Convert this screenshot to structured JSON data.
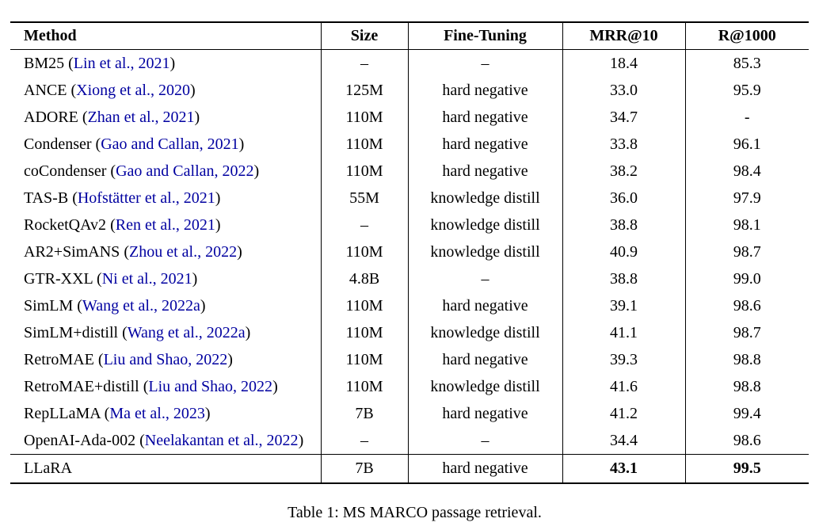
{
  "colors": {
    "citation_link": "#0000a0",
    "text": "#000000",
    "background": "#ffffff"
  },
  "caption": "Table 1: MS MARCO passage retrieval.",
  "table": {
    "columns": [
      "Method",
      "Size",
      "Fine-Tuning",
      "MRR@10",
      "R@1000"
    ],
    "rows": [
      {
        "method": "BM25",
        "cite": "Lin et al., 2021",
        "size": "–",
        "fine_tuning": "–",
        "mrr10": "18.4",
        "r1000": "85.3",
        "highlight": false
      },
      {
        "method": "ANCE",
        "cite": "Xiong et al., 2020",
        "size": "125M",
        "fine_tuning": "hard negative",
        "mrr10": "33.0",
        "r1000": "95.9",
        "highlight": false
      },
      {
        "method": "ADORE",
        "cite": "Zhan et al., 2021",
        "size": "110M",
        "fine_tuning": "hard negative",
        "mrr10": "34.7",
        "r1000": "-",
        "highlight": false
      },
      {
        "method": "Condenser",
        "cite": "Gao and Callan, 2021",
        "size": "110M",
        "fine_tuning": "hard negative",
        "mrr10": "33.8",
        "r1000": "96.1",
        "highlight": false
      },
      {
        "method": "coCondenser",
        "cite": "Gao and Callan, 2022",
        "size": "110M",
        "fine_tuning": "hard negative",
        "mrr10": "38.2",
        "r1000": "98.4",
        "highlight": false
      },
      {
        "method": "TAS-B",
        "cite": "Hofstätter et al., 2021",
        "size": "55M",
        "fine_tuning": "knowledge distill",
        "mrr10": "36.0",
        "r1000": "97.9",
        "highlight": false
      },
      {
        "method": "RocketQAv2",
        "cite": "Ren et al., 2021",
        "size": "–",
        "fine_tuning": "knowledge distill",
        "mrr10": "38.8",
        "r1000": "98.1",
        "highlight": false
      },
      {
        "method": "AR2+SimANS",
        "cite": "Zhou et al., 2022",
        "size": "110M",
        "fine_tuning": "knowledge distill",
        "mrr10": "40.9",
        "r1000": "98.7",
        "highlight": false
      },
      {
        "method": "GTR-XXL",
        "cite": "Ni et al., 2021",
        "size": "4.8B",
        "fine_tuning": "–",
        "mrr10": "38.8",
        "r1000": "99.0",
        "highlight": false
      },
      {
        "method": "SimLM",
        "cite": "Wang et al., 2022a",
        "size": "110M",
        "fine_tuning": "hard negative",
        "mrr10": "39.1",
        "r1000": "98.6",
        "highlight": false
      },
      {
        "method": "SimLM+distill",
        "cite": "Wang et al., 2022a",
        "size": "110M",
        "fine_tuning": "knowledge distill",
        "mrr10": "41.1",
        "r1000": "98.7",
        "highlight": false
      },
      {
        "method": "RetroMAE",
        "cite": "Liu and Shao, 2022",
        "size": "110M",
        "fine_tuning": "hard negative",
        "mrr10": "39.3",
        "r1000": "98.8",
        "highlight": false
      },
      {
        "method": "RetroMAE+distill",
        "cite": "Liu and Shao, 2022",
        "size": "110M",
        "fine_tuning": "knowledge distill",
        "mrr10": "41.6",
        "r1000": "98.8",
        "highlight": false
      },
      {
        "method": "RepLLaMA",
        "cite": "Ma et al., 2023",
        "size": "7B",
        "fine_tuning": "hard negative",
        "mrr10": "41.2",
        "r1000": "99.4",
        "highlight": false
      },
      {
        "method": "OpenAI-Ada-002",
        "cite": "Neelakantan et al., 2022",
        "size": "–",
        "fine_tuning": "–",
        "mrr10": "34.4",
        "r1000": "98.6",
        "highlight": false
      },
      {
        "method": "LLaRA",
        "cite": "",
        "size": "7B",
        "fine_tuning": "hard negative",
        "mrr10": "43.1",
        "r1000": "99.5",
        "highlight": true
      }
    ]
  }
}
